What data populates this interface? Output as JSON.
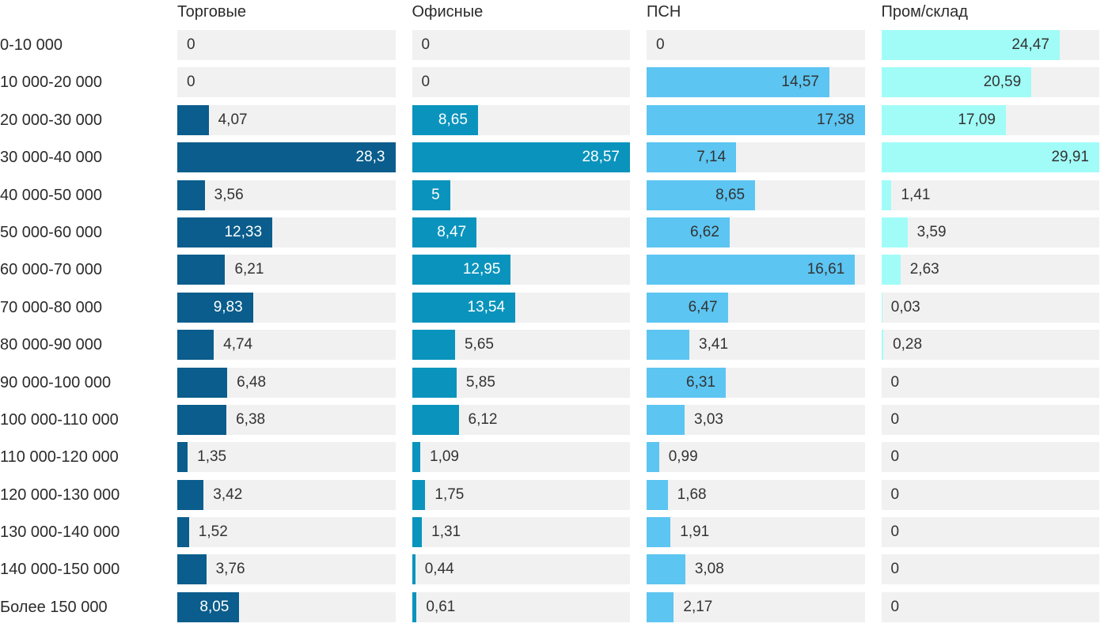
{
  "chart_data": {
    "type": "bar",
    "orientation": "horizontal",
    "categories": [
      "0-10 000",
      "10 000-20 000",
      "20 000-30 000",
      "30 000-40 000",
      "40 000-50 000",
      "50 000-60 000",
      "60 000-70 000",
      "70 000-80 000",
      "80 000-90 000",
      "90 000-100 000",
      "100 000-110 000",
      "110 000-120 000",
      "120 000-130 000",
      "130 000-140 000",
      "140 000-150 000",
      "Более 150 000"
    ],
    "series": [
      {
        "name": "Торговые",
        "color": "#0a5d8c",
        "label_color_inside": "#ffffff",
        "values": [
          0,
          0,
          4.07,
          28.3,
          3.56,
          12.33,
          6.21,
          9.83,
          4.74,
          6.48,
          6.38,
          1.35,
          3.42,
          1.52,
          3.76,
          8.05
        ]
      },
      {
        "name": "Офисные",
        "color": "#0a94bd",
        "label_color_inside": "#ffffff",
        "values": [
          0,
          0,
          8.65,
          28.57,
          5,
          8.47,
          12.95,
          13.54,
          5.65,
          5.85,
          6.12,
          1.09,
          1.75,
          1.31,
          0.44,
          0.61
        ]
      },
      {
        "name": "ПСН",
        "color": "#5cc5f2",
        "label_color_inside": "#333333",
        "values": [
          0,
          14.57,
          17.38,
          7.14,
          8.65,
          6.62,
          16.61,
          6.47,
          3.41,
          6.31,
          3.03,
          0.99,
          1.68,
          1.91,
          3.08,
          2.17
        ]
      },
      {
        "name": "Пром/склад",
        "color": "#a1fcf7",
        "label_color_inside": "#333333",
        "values": [
          24.47,
          20.59,
          17.09,
          29.91,
          1.41,
          3.59,
          2.63,
          0.03,
          0.28,
          0,
          0,
          0,
          0,
          0,
          0,
          0
        ]
      }
    ],
    "value_scaling": "each series scaled to its own max (max value fills track width)",
    "decimal_separator": ",",
    "legend_position": "column headers on top",
    "grid": false,
    "track_color": "#f1f1f1",
    "text_color": "#333333",
    "background": "#ffffff"
  }
}
